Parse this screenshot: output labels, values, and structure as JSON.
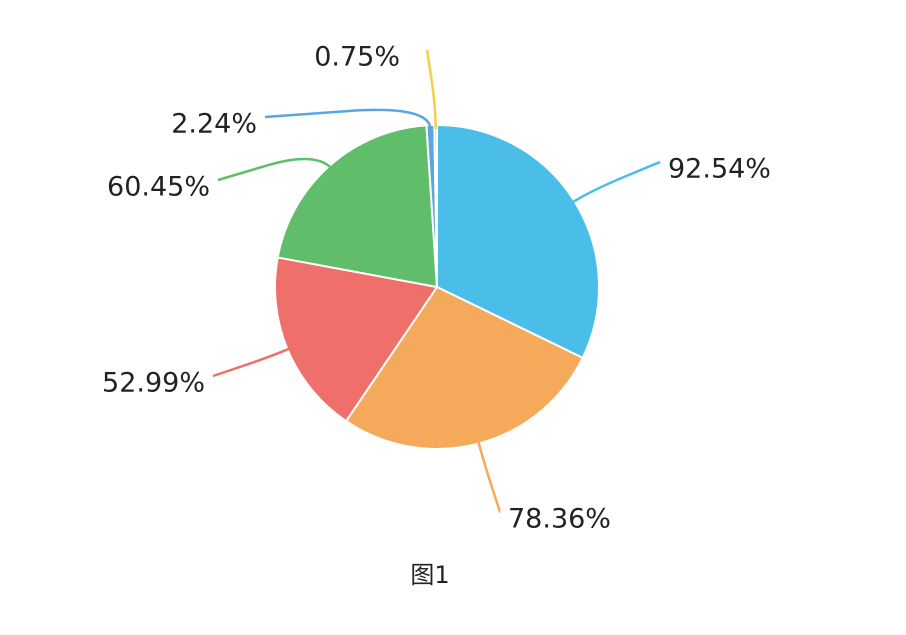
{
  "chart_data": {
    "type": "pie",
    "title": "图1",
    "values": [
      92.54,
      78.36,
      52.99,
      60.45,
      2.24,
      0.75
    ],
    "value_labels": [
      "92.54%",
      "78.36%",
      "52.99%",
      "60.45%",
      "2.24%",
      "0.75%"
    ],
    "colors": [
      "#4bbde9",
      "#f5a95a",
      "#ef6f6a",
      "#60bd6a",
      "#5aa6e0",
      "#f5cf4b"
    ]
  }
}
